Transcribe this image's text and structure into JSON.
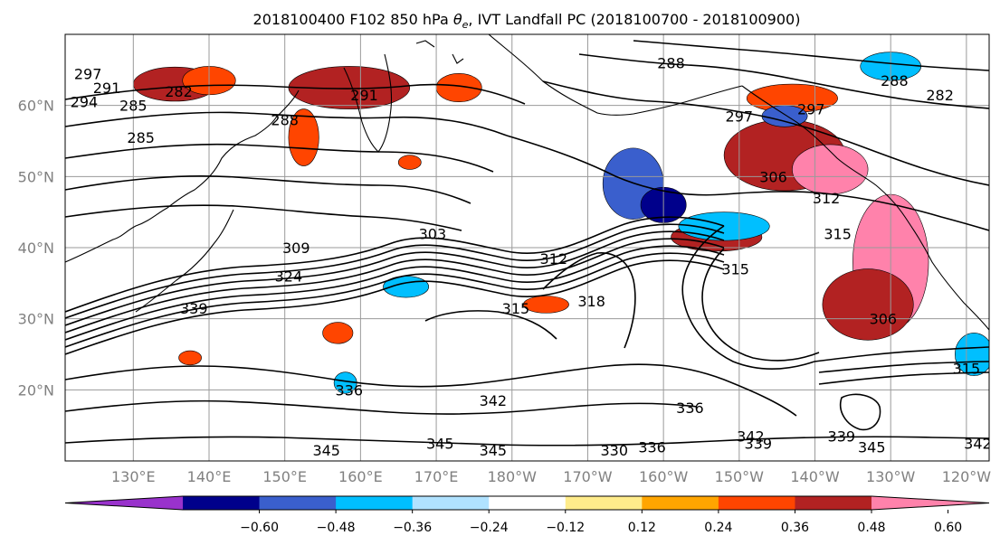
{
  "chart_data": {
    "type": "heatmap",
    "title": "2018100400 F102 850 hPa θe, IVT Landfall PC (2018100700 - 2018100900)",
    "title_parts": {
      "prefix": "2018100400 F102 850 hPa ",
      "theta": "θ",
      "sub": "e",
      "suffix": ", IVT Landfall PC (2018100700 - 2018100900)"
    },
    "y_ticks": [
      "20°N",
      "30°N",
      "40°N",
      "50°N",
      "60°N"
    ],
    "y_tick_values": [
      20,
      30,
      40,
      50,
      60
    ],
    "x_ticks": [
      "130°E",
      "140°E",
      "150°E",
      "160°E",
      "170°E",
      "180°W",
      "170°W",
      "160°W",
      "150°W",
      "140°W",
      "130°W",
      "120°W"
    ],
    "x_tick_values": [
      130,
      140,
      150,
      160,
      170,
      180,
      190,
      200,
      210,
      220,
      230,
      240
    ],
    "xlim": [
      121,
      243
    ],
    "ylim": [
      10,
      70
    ],
    "grid": true,
    "colorbar": {
      "levels": [
        -0.72,
        -0.6,
        -0.48,
        -0.36,
        -0.24,
        -0.12,
        0.12,
        0.24,
        0.36,
        0.48,
        0.6,
        0.72
      ],
      "tick_labels": [
        "−0.60",
        "−0.48",
        "−0.36",
        "−0.24",
        "−0.12",
        "0.12",
        "0.24",
        "0.36",
        "0.48",
        "0.60"
      ],
      "tick_values": [
        -0.6,
        -0.48,
        -0.36,
        -0.24,
        -0.12,
        0.12,
        0.24,
        0.36,
        0.48,
        0.6
      ],
      "colors": [
        "#9932cc",
        "#00008b",
        "#3a5fcd",
        "#00bfff",
        "#b0e2ff",
        "#ffffff",
        "#ffec8b",
        "#ffa500",
        "#ff4500",
        "#b22222",
        "#ff82ab"
      ],
      "extend": "both"
    },
    "contour_labels": [
      {
        "text": "297",
        "lon": 124,
        "lat": 64.5
      },
      {
        "text": "294",
        "lon": 123.5,
        "lat": 60.5
      },
      {
        "text": "291",
        "lon": 126.5,
        "lat": 62.5
      },
      {
        "text": "285",
        "lon": 130,
        "lat": 60
      },
      {
        "text": "285",
        "lon": 131,
        "lat": 55.5
      },
      {
        "text": "282",
        "lon": 136,
        "lat": 62
      },
      {
        "text": "288",
        "lon": 150,
        "lat": 58
      },
      {
        "text": "291",
        "lon": 160.5,
        "lat": 61.5
      },
      {
        "text": "288",
        "lon": 201,
        "lat": 66
      },
      {
        "text": "297",
        "lon": 210,
        "lat": 58.5
      },
      {
        "text": "297",
        "lon": 219.5,
        "lat": 59.5
      },
      {
        "text": "288",
        "lon": 230.5,
        "lat": 63.5
      },
      {
        "text": "282",
        "lon": 236.5,
        "lat": 61.5
      },
      {
        "text": "306",
        "lon": 214.5,
        "lat": 50
      },
      {
        "text": "312",
        "lon": 221.5,
        "lat": 47
      },
      {
        "text": "315",
        "lon": 223,
        "lat": 42
      },
      {
        "text": "303",
        "lon": 169.5,
        "lat": 42
      },
      {
        "text": "309",
        "lon": 151.5,
        "lat": 40
      },
      {
        "text": "324",
        "lon": 150.5,
        "lat": 36
      },
      {
        "text": "339",
        "lon": 138,
        "lat": 31.5
      },
      {
        "text": "315",
        "lon": 180.5,
        "lat": 31.5
      },
      {
        "text": "318",
        "lon": 190.5,
        "lat": 32.5
      },
      {
        "text": "312",
        "lon": 185.5,
        "lat": 38.5
      },
      {
        "text": "315",
        "lon": 209.5,
        "lat": 37
      },
      {
        "text": "306",
        "lon": 229,
        "lat": 30
      },
      {
        "text": "315",
        "lon": 240,
        "lat": 23
      },
      {
        "text": "336",
        "lon": 158.5,
        "lat": 20
      },
      {
        "text": "342",
        "lon": 177.5,
        "lat": 18.5
      },
      {
        "text": "336",
        "lon": 203.5,
        "lat": 17.5
      },
      {
        "text": "342",
        "lon": 211.5,
        "lat": 13.5
      },
      {
        "text": "345",
        "lon": 155.5,
        "lat": 11.5
      },
      {
        "text": "345",
        "lon": 170.5,
        "lat": 12.5
      },
      {
        "text": "345",
        "lon": 177.5,
        "lat": 11.5
      },
      {
        "text": "330",
        "lon": 193.5,
        "lat": 11.5
      },
      {
        "text": "336",
        "lon": 198.5,
        "lat": 12
      },
      {
        "text": "339",
        "lon": 212.5,
        "lat": 12.5
      },
      {
        "text": "339",
        "lon": 223.5,
        "lat": 13.5
      },
      {
        "text": "345",
        "lon": 227.5,
        "lat": 12
      },
      {
        "text": "342",
        "lon": 241.5,
        "lat": 12.5
      }
    ],
    "anomaly_regions": [
      {
        "level": 0.48,
        "lon": 135.5,
        "lat": 63,
        "rx": 5.5,
        "ry": 2.4
      },
      {
        "level": 0.36,
        "lon": 140,
        "lat": 63.5,
        "rx": 3.5,
        "ry": 2
      },
      {
        "level": 0.48,
        "lon": 158.5,
        "lat": 62.5,
        "rx": 8,
        "ry": 3
      },
      {
        "level": 0.36,
        "lon": 152.5,
        "lat": 55.5,
        "rx": 2,
        "ry": 4
      },
      {
        "level": 0.36,
        "lon": 166.5,
        "lat": 52,
        "rx": 1.5,
        "ry": 1
      },
      {
        "level": 0.36,
        "lon": 173,
        "lat": 62.5,
        "rx": 3,
        "ry": 2
      },
      {
        "level": 0.36,
        "lon": 217,
        "lat": 61,
        "rx": 6,
        "ry": 2
      },
      {
        "level": 0.48,
        "lon": 216,
        "lat": 53,
        "rx": 8,
        "ry": 5
      },
      {
        "level": 0.6,
        "lon": 222,
        "lat": 51,
        "rx": 5,
        "ry": 3.5
      },
      {
        "level": 0.6,
        "lon": 230,
        "lat": 38,
        "rx": 5,
        "ry": 9.5
      },
      {
        "level": 0.48,
        "lon": 227,
        "lat": 32,
        "rx": 6,
        "ry": 5
      },
      {
        "level": 0.48,
        "lon": 207,
        "lat": 41.5,
        "rx": 6,
        "ry": 2
      },
      {
        "level": -0.48,
        "lon": 196,
        "lat": 49,
        "rx": 4,
        "ry": 5
      },
      {
        "level": -0.6,
        "lon": 200,
        "lat": 46,
        "rx": 3,
        "ry": 2.5
      },
      {
        "level": -0.36,
        "lon": 208,
        "lat": 43,
        "rx": 6,
        "ry": 2
      },
      {
        "level": -0.36,
        "lon": 230,
        "lat": 65.5,
        "rx": 4,
        "ry": 2
      },
      {
        "level": -0.48,
        "lon": 216,
        "lat": 58.5,
        "rx": 3,
        "ry": 1.5
      },
      {
        "level": -0.36,
        "lon": 166,
        "lat": 34.5,
        "rx": 3,
        "ry": 1.5
      },
      {
        "level": -0.36,
        "lon": 241,
        "lat": 25,
        "rx": 2.5,
        "ry": 3
      },
      {
        "level": -0.36,
        "lon": 158,
        "lat": 21,
        "rx": 1.5,
        "ry": 1.5
      },
      {
        "level": 0.36,
        "lon": 184.5,
        "lat": 32,
        "rx": 3,
        "ry": 1.2
      },
      {
        "level": 0.36,
        "lon": 157,
        "lat": 28,
        "rx": 2,
        "ry": 1.5
      },
      {
        "level": 0.36,
        "lon": 137.5,
        "lat": 24.5,
        "rx": 1.5,
        "ry": 1
      }
    ]
  }
}
